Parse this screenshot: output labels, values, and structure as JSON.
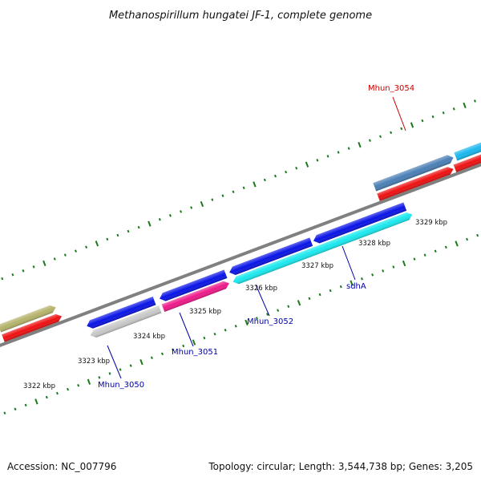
{
  "title": "Methanospirillum hungatei JF-1, complete genome",
  "footer": {
    "accession": "Accession: NC_007796",
    "summary": "Topology: circular; Length: 3,544,738 bp; Genes: 3,205"
  },
  "colors": {
    "backbone": "#808080",
    "tick": "#1a7a1a",
    "blue_label": "#0000aa",
    "red_label": "#cc0000"
  },
  "kbp_labels": [
    {
      "text": "3322 kbp"
    },
    {
      "text": "3323 kbp"
    },
    {
      "text": "3324 kbp"
    },
    {
      "text": "3325 kbp"
    },
    {
      "text": "3326 kbp"
    },
    {
      "text": "3327 kbp"
    },
    {
      "text": "3328 kbp"
    },
    {
      "text": "3329 kbp"
    }
  ],
  "gene_labels": [
    {
      "text": "Mhun_3050",
      "color": "#0000aa"
    },
    {
      "text": "Mhun_3051",
      "color": "#0000aa"
    },
    {
      "text": "Mhun_3052",
      "color": "#0000aa"
    },
    {
      "text": "sdhA",
      "color": "#0000aa"
    },
    {
      "text": "Mhun_3054",
      "color": "#cc0000"
    }
  ],
  "genes": [
    {
      "name": "gene-olive-left",
      "color": "#b5b36a"
    },
    {
      "name": "gene-red-left",
      "color": "#ee1111"
    },
    {
      "name": "gene-blue-1",
      "color": "#0a14e6"
    },
    {
      "name": "gene-gray-mhun-3050",
      "color": "#c8c8c8"
    },
    {
      "name": "gene-blue-2",
      "color": "#0a14e6"
    },
    {
      "name": "gene-magenta-mhun-3051",
      "color": "#ee1a8a"
    },
    {
      "name": "gene-blue-3",
      "color": "#0a14e6"
    },
    {
      "name": "gene-cyan-mhun-3052",
      "color": "#1ae8ee"
    },
    {
      "name": "gene-blue-4",
      "color": "#0a14e6"
    },
    {
      "name": "gene-cyan-sdha",
      "color": "#1ae8ee"
    },
    {
      "name": "gene-steelblue-mhun-3054",
      "color": "#4a7fb5"
    },
    {
      "name": "gene-cyan-right",
      "color": "#1ab8ee"
    },
    {
      "name": "gene-red-right-1",
      "color": "#ee1111"
    },
    {
      "name": "gene-red-right-2",
      "color": "#ee1111"
    }
  ]
}
